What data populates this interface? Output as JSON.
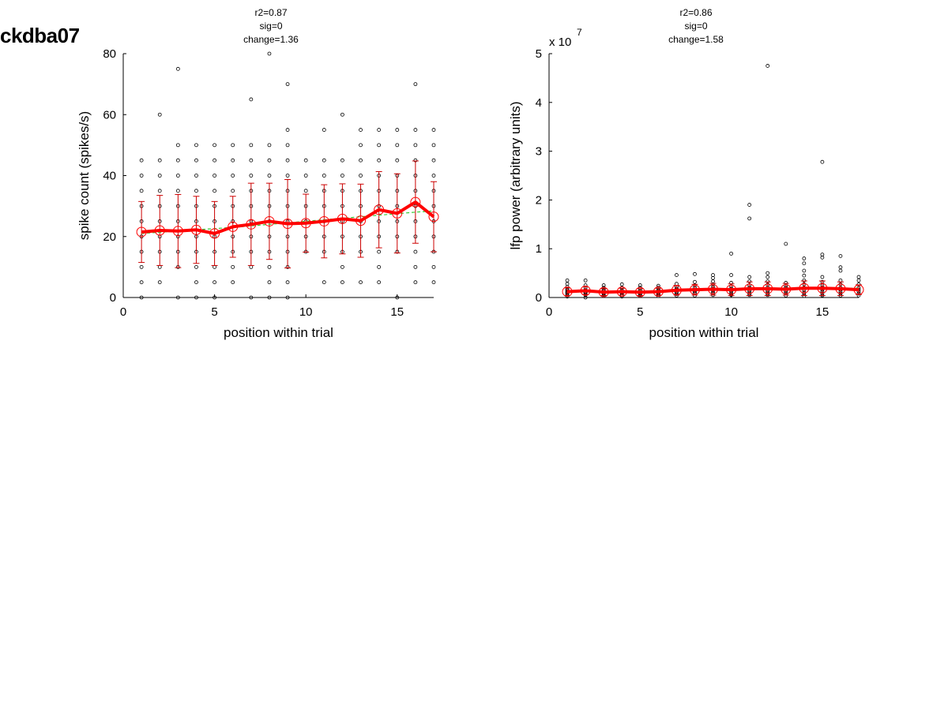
{
  "figure": {
    "title": "ckdba07"
  },
  "chart_data": [
    {
      "type": "scatter",
      "stats": [
        "r2=0.87",
        "sig=0",
        "change=1.36"
      ],
      "xlabel": "position within trial",
      "ylabel": "spike count (spikes/s)",
      "xlim": [
        0,
        17
      ],
      "ylim": [
        0,
        80
      ],
      "xticks": [
        0,
        5,
        10,
        15
      ],
      "yticks": [
        0,
        20,
        40,
        60,
        80
      ],
      "scale_label": "",
      "colors": {
        "points": "#000000",
        "mean": "#ff0000",
        "errorbar": "#cc0000",
        "fit": "#33cc33"
      },
      "x": [
        1,
        2,
        3,
        4,
        5,
        6,
        7,
        8,
        9,
        10,
        11,
        12,
        13,
        14,
        15,
        16,
        17
      ],
      "mean": [
        21.5,
        22.0,
        21.8,
        22.2,
        21.0,
        23.2,
        24.0,
        25.0,
        24.2,
        24.4,
        25.0,
        25.8,
        25.2,
        28.8,
        27.6,
        31.3,
        26.5
      ],
      "sd": [
        10.0,
        11.5,
        12.0,
        11.0,
        10.5,
        10.0,
        13.5,
        12.5,
        14.5,
        9.5,
        12.0,
        11.5,
        12.0,
        12.5,
        13.0,
        13.5,
        11.5
      ],
      "fit": [
        21.0,
        21.4,
        21.8,
        22.2,
        22.6,
        23.0,
        23.5,
        24.0,
        24.5,
        25.0,
        25.5,
        26.0,
        26.5,
        27.0,
        27.5,
        28.0,
        28.4
      ],
      "points": [
        {
          "x": 1,
          "y": [
            0,
            5,
            10,
            15,
            20,
            25,
            30,
            35,
            40,
            45
          ]
        },
        {
          "x": 2,
          "y": [
            5,
            10,
            15,
            20,
            25,
            30,
            35,
            40,
            45,
            60
          ]
        },
        {
          "x": 3,
          "y": [
            0,
            10,
            15,
            20,
            25,
            30,
            35,
            40,
            45,
            50,
            75
          ]
        },
        {
          "x": 4,
          "y": [
            0,
            5,
            10,
            15,
            20,
            25,
            30,
            35,
            40,
            45,
            50
          ]
        },
        {
          "x": 5,
          "y": [
            0,
            5,
            10,
            15,
            20,
            25,
            30,
            35,
            40,
            45,
            50
          ]
        },
        {
          "x": 6,
          "y": [
            5,
            10,
            15,
            20,
            25,
            30,
            35,
            40,
            45,
            50
          ]
        },
        {
          "x": 7,
          "y": [
            0,
            10,
            15,
            20,
            25,
            30,
            35,
            40,
            45,
            50,
            65
          ]
        },
        {
          "x": 8,
          "y": [
            0,
            5,
            10,
            15,
            20,
            25,
            30,
            35,
            40,
            45,
            50,
            80
          ]
        },
        {
          "x": 9,
          "y": [
            0,
            5,
            10,
            15,
            20,
            25,
            30,
            35,
            40,
            45,
            50,
            55,
            70
          ]
        },
        {
          "x": 10,
          "y": [
            15,
            20,
            25,
            30,
            35,
            40,
            45
          ]
        },
        {
          "x": 11,
          "y": [
            5,
            15,
            20,
            25,
            30,
            35,
            40,
            45,
            55
          ]
        },
        {
          "x": 12,
          "y": [
            5,
            10,
            15,
            20,
            25,
            30,
            35,
            40,
            45,
            60
          ]
        },
        {
          "x": 13,
          "y": [
            5,
            15,
            20,
            25,
            30,
            35,
            40,
            45,
            50,
            55
          ]
        },
        {
          "x": 14,
          "y": [
            5,
            10,
            15,
            20,
            25,
            30,
            35,
            40,
            45,
            50,
            55
          ]
        },
        {
          "x": 15,
          "y": [
            0,
            15,
            20,
            25,
            30,
            35,
            40,
            45,
            50,
            55
          ]
        },
        {
          "x": 16,
          "y": [
            5,
            10,
            15,
            20,
            25,
            30,
            35,
            40,
            45,
            50,
            55,
            70
          ]
        },
        {
          "x": 17,
          "y": [
            5,
            10,
            15,
            20,
            25,
            30,
            35,
            40,
            45,
            50,
            55
          ]
        }
      ]
    },
    {
      "type": "scatter",
      "stats": [
        "r2=0.86",
        "sig=0",
        "change=1.58"
      ],
      "xlabel": "position within trial",
      "ylabel": "lfp power (arbitrary units)",
      "xlim": [
        0,
        17
      ],
      "ylim": [
        0,
        5
      ],
      "xticks": [
        0,
        5,
        10,
        15
      ],
      "yticks": [
        0,
        1,
        2,
        3,
        4,
        5
      ],
      "scale_label": "x 10",
      "scale_exponent": "7",
      "colors": {
        "points": "#000000",
        "mean": "#ff0000",
        "errorbar": "#cc0000",
        "fit": "#33cc33"
      },
      "x": [
        1,
        2,
        3,
        4,
        5,
        6,
        7,
        8,
        9,
        10,
        11,
        12,
        13,
        14,
        15,
        16,
        17
      ],
      "mean": [
        0.12,
        0.14,
        0.11,
        0.12,
        0.11,
        0.12,
        0.15,
        0.16,
        0.17,
        0.16,
        0.18,
        0.18,
        0.17,
        0.19,
        0.19,
        0.18,
        0.16
      ],
      "sd": [
        0.08,
        0.08,
        0.07,
        0.07,
        0.07,
        0.07,
        0.1,
        0.11,
        0.12,
        0.12,
        0.14,
        0.14,
        0.12,
        0.15,
        0.15,
        0.14,
        0.1
      ],
      "fit": [
        0.11,
        0.116,
        0.122,
        0.128,
        0.134,
        0.14,
        0.146,
        0.152,
        0.158,
        0.164,
        0.17,
        0.176,
        0.18,
        0.184,
        0.188,
        0.19,
        0.19
      ],
      "points": [
        {
          "x": 1,
          "y": [
            0.02,
            0.05,
            0.08,
            0.1,
            0.12,
            0.15,
            0.18,
            0.22,
            0.28,
            0.35
          ]
        },
        {
          "x": 2,
          "y": [
            0.0,
            0.05,
            0.08,
            0.1,
            0.12,
            0.15,
            0.2,
            0.25,
            0.35
          ]
        },
        {
          "x": 3,
          "y": [
            0.03,
            0.06,
            0.08,
            0.1,
            0.13,
            0.16,
            0.2,
            0.25
          ]
        },
        {
          "x": 4,
          "y": [
            0.02,
            0.05,
            0.08,
            0.1,
            0.12,
            0.15,
            0.2,
            0.27
          ]
        },
        {
          "x": 5,
          "y": [
            0.03,
            0.06,
            0.08,
            0.1,
            0.12,
            0.15,
            0.2,
            0.25
          ]
        },
        {
          "x": 6,
          "y": [
            0.03,
            0.06,
            0.08,
            0.1,
            0.13,
            0.16,
            0.2,
            0.24
          ]
        },
        {
          "x": 7,
          "y": [
            0.04,
            0.07,
            0.1,
            0.12,
            0.15,
            0.18,
            0.22,
            0.28,
            0.46
          ]
        },
        {
          "x": 8,
          "y": [
            0.04,
            0.08,
            0.1,
            0.13,
            0.16,
            0.2,
            0.25,
            0.32,
            0.48
          ]
        },
        {
          "x": 9,
          "y": [
            0.05,
            0.08,
            0.1,
            0.14,
            0.18,
            0.22,
            0.27,
            0.33,
            0.4,
            0.46
          ]
        },
        {
          "x": 10,
          "y": [
            0.05,
            0.08,
            0.12,
            0.15,
            0.18,
            0.23,
            0.3,
            0.46,
            0.9
          ]
        },
        {
          "x": 11,
          "y": [
            0.05,
            0.08,
            0.12,
            0.15,
            0.2,
            0.25,
            0.33,
            0.42,
            1.62,
            1.9
          ]
        },
        {
          "x": 12,
          "y": [
            0.05,
            0.08,
            0.12,
            0.15,
            0.2,
            0.26,
            0.33,
            0.42,
            0.5,
            4.75
          ]
        },
        {
          "x": 13,
          "y": [
            0.04,
            0.08,
            0.12,
            0.15,
            0.2,
            0.24,
            0.3,
            1.1
          ]
        },
        {
          "x": 14,
          "y": [
            0.03,
            0.07,
            0.1,
            0.15,
            0.2,
            0.27,
            0.35,
            0.45,
            0.55,
            0.7,
            0.8
          ]
        },
        {
          "x": 15,
          "y": [
            0.04,
            0.08,
            0.12,
            0.16,
            0.2,
            0.25,
            0.32,
            0.42,
            0.82,
            0.88,
            2.78
          ]
        },
        {
          "x": 16,
          "y": [
            0.04,
            0.08,
            0.12,
            0.16,
            0.2,
            0.27,
            0.35,
            0.55,
            0.62,
            0.85
          ]
        },
        {
          "x": 17,
          "y": [
            0.04,
            0.08,
            0.12,
            0.16,
            0.2,
            0.27,
            0.35,
            0.42
          ]
        }
      ]
    }
  ]
}
